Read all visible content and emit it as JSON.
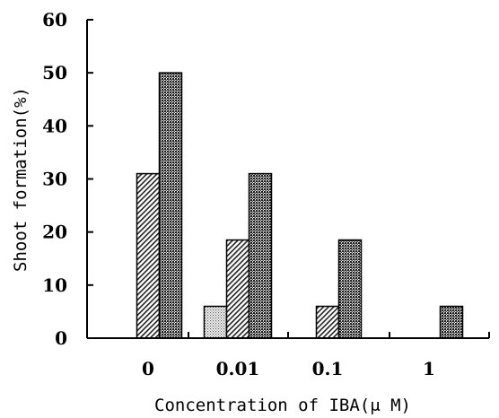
{
  "chart_data": {
    "type": "bar",
    "title": "",
    "xlabel": "Concentration of IBA(μ M)",
    "ylabel": "Shoot formation(%)",
    "categories": [
      "0",
      "0.01",
      "0.1",
      "1"
    ],
    "ylim": [
      0,
      60
    ],
    "yticks": [
      "0",
      "10",
      "20",
      "30",
      "40",
      "50",
      "60"
    ],
    "grid": false,
    "legend": "none",
    "series": [
      {
        "values": [
          0,
          6,
          0,
          0
        ],
        "color": "#d8d8d8",
        "pattern": "dots"
      },
      {
        "values": [
          31,
          18.5,
          6,
          0
        ],
        "color": "#9a9a9a",
        "pattern": "diagonal-hatch"
      },
      {
        "values": [
          50,
          31,
          18.5,
          6
        ],
        "color": "#555555",
        "pattern": "crosshatch-dense"
      }
    ]
  }
}
